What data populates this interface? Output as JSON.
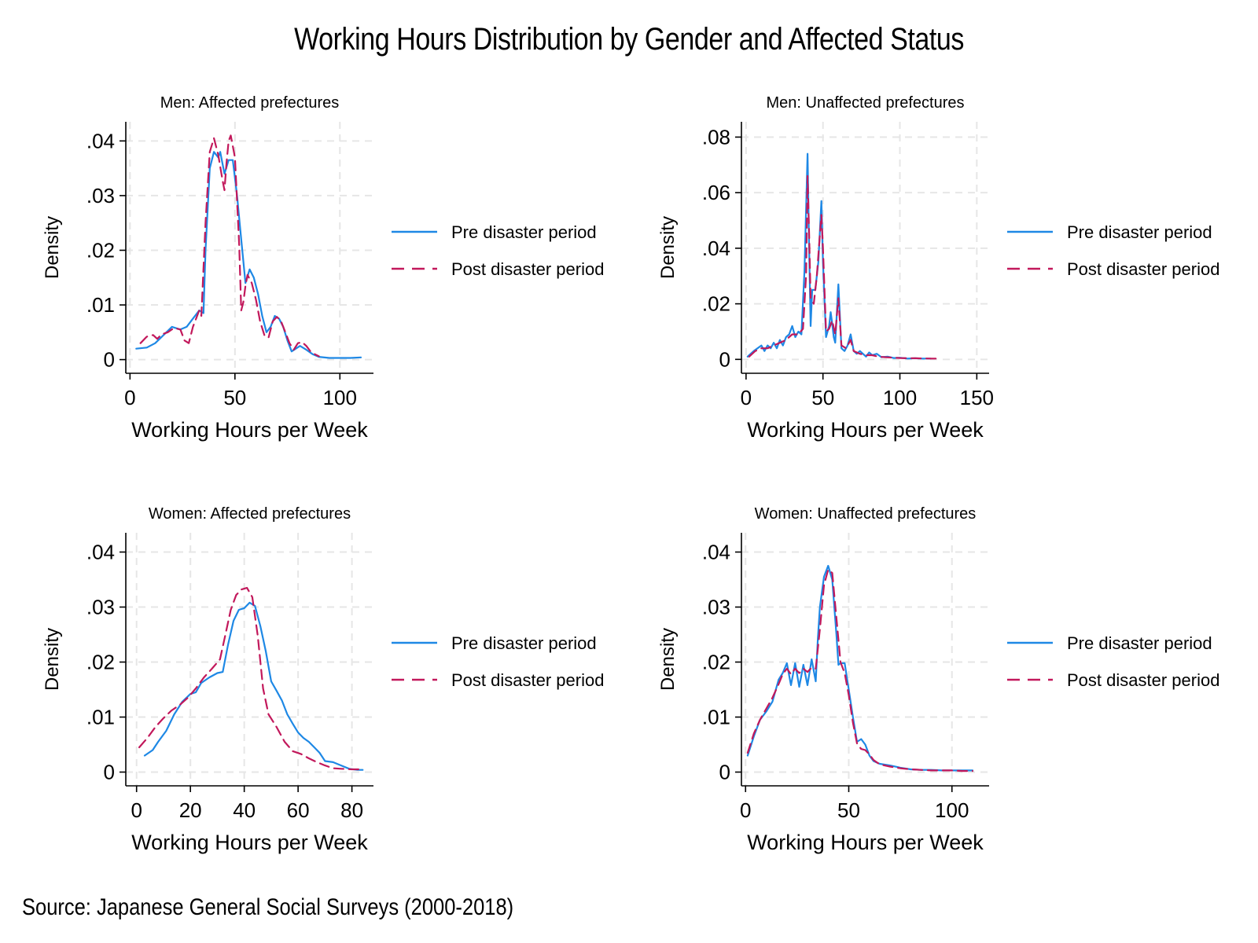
{
  "title": "Working Hours Distribution by Gender and Affected Status",
  "source": "Source: Japanese General Social Surveys (2000-2018)",
  "colors": {
    "pre": "#1e88e5",
    "post": "#c2185b",
    "grid": "#e6e6e6"
  },
  "chart_data": [
    {
      "type": "line",
      "title": "Men: Affected prefectures",
      "xlabel": "Working Hours per Week",
      "ylabel": "Density",
      "xlim": [
        -2,
        116
      ],
      "ylim": [
        -0.0025,
        0.0435
      ],
      "xticks": [
        0,
        50,
        100
      ],
      "xtick_labels": [
        "0",
        "50",
        "100"
      ],
      "yticks": [
        0,
        0.01,
        0.02,
        0.03,
        0.04
      ],
      "ytick_labels": [
        "0",
        ".01",
        ".02",
        ".03",
        ".04"
      ],
      "grid": true,
      "legend": "right",
      "series": [
        {
          "name": "Pre disaster period",
          "style": "solid",
          "x": [
            3,
            8,
            12,
            16,
            20,
            24,
            27,
            30,
            33,
            35,
            36,
            38,
            40,
            42,
            43,
            44,
            45,
            47,
            49,
            51,
            53,
            55,
            57,
            59,
            61,
            63,
            65,
            67,
            69,
            71,
            73,
            75,
            77,
            79,
            81,
            84,
            87,
            90,
            95,
            100,
            105,
            110
          ],
          "y": [
            0.002,
            0.0022,
            0.003,
            0.0045,
            0.006,
            0.0055,
            0.006,
            0.0075,
            0.009,
            0.0085,
            0.02,
            0.035,
            0.038,
            0.037,
            0.038,
            0.036,
            0.034,
            0.0365,
            0.0365,
            0.03,
            0.022,
            0.014,
            0.0165,
            0.015,
            0.012,
            0.008,
            0.005,
            0.006,
            0.008,
            0.0075,
            0.006,
            0.0035,
            0.0015,
            0.002,
            0.0025,
            0.0018,
            0.001,
            0.0005,
            0.0003,
            0.0003,
            0.0003,
            0.0004
          ]
        },
        {
          "name": "Post disaster period",
          "style": "dashed",
          "x": [
            5,
            8,
            11,
            13,
            15,
            18,
            21,
            24,
            26,
            28,
            30,
            33,
            34,
            36,
            38,
            40,
            42,
            44,
            45,
            46,
            47,
            48,
            50,
            52,
            53,
            54,
            55,
            56,
            58,
            60,
            62,
            64,
            66,
            68,
            70,
            72,
            74,
            76,
            78,
            80,
            82,
            84,
            86,
            88,
            90
          ],
          "y": [
            0.003,
            0.0042,
            0.0045,
            0.0038,
            0.0046,
            0.005,
            0.0058,
            0.0055,
            0.0035,
            0.003,
            0.006,
            0.009,
            0.008,
            0.025,
            0.038,
            0.0405,
            0.0375,
            0.033,
            0.031,
            0.036,
            0.04,
            0.041,
            0.037,
            0.021,
            0.009,
            0.0105,
            0.0135,
            0.0155,
            0.014,
            0.011,
            0.007,
            0.0045,
            0.004,
            0.007,
            0.0078,
            0.007,
            0.005,
            0.003,
            0.0018,
            0.003,
            0.0032,
            0.0025,
            0.0015,
            0.001,
            0.0006
          ]
        }
      ]
    },
    {
      "type": "line",
      "title": "Men: Unaffected prefectures",
      "xlabel": "Working Hours per Week",
      "ylabel": "Density",
      "xlim": [
        -3,
        158
      ],
      "ylim": [
        -0.005,
        0.0855
      ],
      "xticks": [
        0,
        50,
        100,
        150
      ],
      "xtick_labels": [
        "0",
        "50",
        "100",
        "150"
      ],
      "yticks": [
        0,
        0.02,
        0.04,
        0.06,
        0.08
      ],
      "ytick_labels": [
        "0",
        ".02",
        ".04",
        ".06",
        ".08"
      ],
      "grid": true,
      "legend": "right",
      "series": [
        {
          "name": "Pre disaster period",
          "style": "solid",
          "x": [
            1,
            5,
            10,
            12,
            14,
            16,
            18,
            20,
            22,
            24,
            26,
            28,
            30,
            32,
            34,
            36,
            38,
            40,
            41,
            42,
            43,
            45,
            47,
            49,
            50,
            52,
            54,
            55,
            56,
            57,
            58,
            60,
            62,
            64,
            66,
            68,
            70,
            72,
            74,
            78,
            80,
            82,
            85,
            88,
            92,
            96,
            100,
            105,
            110,
            115,
            120
          ],
          "y": [
            0.001,
            0.003,
            0.005,
            0.003,
            0.005,
            0.004,
            0.006,
            0.004,
            0.007,
            0.005,
            0.008,
            0.009,
            0.012,
            0.008,
            0.01,
            0.009,
            0.032,
            0.074,
            0.04,
            0.012,
            0.025,
            0.025,
            0.035,
            0.057,
            0.035,
            0.008,
            0.012,
            0.017,
            0.013,
            0.008,
            0.006,
            0.027,
            0.004,
            0.003,
            0.005,
            0.009,
            0.003,
            0.002,
            0.003,
            0.001,
            0.0025,
            0.0015,
            0.002,
            0.0008,
            0.001,
            0.0005,
            0.0006,
            0.0003,
            0.0004,
            0.0003,
            0.0003
          ]
        },
        {
          "name": "Post disaster period",
          "style": "dashed",
          "x": [
            2,
            6,
            10,
            14,
            18,
            22,
            26,
            30,
            34,
            37,
            39,
            40,
            41,
            42,
            44,
            46,
            48,
            49,
            50,
            52,
            54,
            56,
            58,
            60,
            62,
            65,
            68,
            70,
            74,
            78,
            82,
            86,
            90,
            100,
            110,
            120,
            125
          ],
          "y": [
            0.001,
            0.003,
            0.004,
            0.004,
            0.005,
            0.006,
            0.007,
            0.009,
            0.009,
            0.011,
            0.03,
            0.066,
            0.045,
            0.022,
            0.02,
            0.03,
            0.045,
            0.052,
            0.04,
            0.01,
            0.011,
            0.014,
            0.009,
            0.022,
            0.005,
            0.004,
            0.007,
            0.003,
            0.002,
            0.0015,
            0.0015,
            0.001,
            0.0008,
            0.0005,
            0.0004,
            0.0003,
            0.0003
          ]
        }
      ]
    },
    {
      "type": "line",
      "title": "Women: Affected prefectures",
      "xlabel": "Working Hours per Week",
      "ylabel": "Density",
      "xlim": [
        -4,
        88
      ],
      "ylim": [
        -0.0025,
        0.0435
      ],
      "xticks": [
        0,
        20,
        40,
        60,
        80
      ],
      "xtick_labels": [
        "0",
        "20",
        "40",
        "60",
        "80"
      ],
      "yticks": [
        0,
        0.01,
        0.02,
        0.03,
        0.04
      ],
      "ytick_labels": [
        "0",
        ".01",
        ".02",
        ".03",
        ".04"
      ],
      "grid": true,
      "legend": "right",
      "series": [
        {
          "name": "Pre disaster period",
          "style": "solid",
          "x": [
            3,
            6,
            8,
            11,
            14,
            17,
            20,
            22,
            24,
            27,
            30,
            32,
            34,
            36,
            38,
            40,
            42,
            44,
            46,
            48,
            50,
            52,
            54,
            56,
            58,
            60,
            62,
            64,
            66,
            68,
            70,
            73,
            76,
            79,
            82,
            84
          ],
          "y": [
            0.003,
            0.004,
            0.0055,
            0.0075,
            0.0105,
            0.0128,
            0.0142,
            0.0145,
            0.0162,
            0.0172,
            0.018,
            0.0182,
            0.0232,
            0.0275,
            0.0295,
            0.0298,
            0.0308,
            0.0302,
            0.0265,
            0.022,
            0.0165,
            0.0148,
            0.013,
            0.0105,
            0.0088,
            0.0072,
            0.0062,
            0.0055,
            0.0045,
            0.0035,
            0.002,
            0.0018,
            0.0012,
            0.0006,
            0.0004,
            0.0004
          ]
        },
        {
          "name": "Post disaster period",
          "style": "dashed",
          "x": [
            1,
            4,
            7,
            10,
            13,
            16,
            19,
            22,
            25,
            28,
            31,
            33,
            35,
            37,
            39,
            41,
            43,
            45,
            47,
            49,
            52,
            55,
            58,
            61,
            64,
            67,
            70,
            73,
            76,
            80,
            83
          ],
          "y": [
            0.0045,
            0.0062,
            0.0082,
            0.0098,
            0.0112,
            0.0122,
            0.0135,
            0.0152,
            0.0172,
            0.0188,
            0.0205,
            0.025,
            0.0295,
            0.0322,
            0.0332,
            0.0335,
            0.0318,
            0.0248,
            0.0152,
            0.0105,
            0.0082,
            0.0055,
            0.0038,
            0.0033,
            0.0025,
            0.0018,
            0.0012,
            0.0007,
            0.0006,
            0.0005,
            0.0005
          ]
        }
      ]
    },
    {
      "type": "line",
      "title": "Women: Unaffected prefectures",
      "xlabel": "Working Hours per Week",
      "ylabel": "Density",
      "xlim": [
        -2,
        118
      ],
      "ylim": [
        -0.0025,
        0.0435
      ],
      "xticks": [
        0,
        50,
        100
      ],
      "xtick_labels": [
        "0",
        "50",
        "100"
      ],
      "yticks": [
        0,
        0.01,
        0.02,
        0.03,
        0.04
      ],
      "ytick_labels": [
        "0",
        ".01",
        ".02",
        ".03",
        ".04"
      ],
      "grid": true,
      "legend": "right",
      "series": [
        {
          "name": "Pre disaster period",
          "style": "solid",
          "x": [
            1,
            4,
            7,
            10,
            13,
            16,
            18,
            20,
            22,
            24,
            26,
            28,
            30,
            32,
            34,
            35,
            36,
            38,
            40,
            42,
            44,
            45,
            46,
            48,
            50,
            52,
            54,
            56,
            58,
            60,
            62,
            65,
            70,
            75,
            80,
            85,
            90,
            95,
            100,
            105,
            110
          ],
          "y": [
            0.003,
            0.0065,
            0.0095,
            0.011,
            0.0128,
            0.0168,
            0.018,
            0.0198,
            0.0158,
            0.0198,
            0.0155,
            0.0195,
            0.0158,
            0.0205,
            0.0165,
            0.024,
            0.03,
            0.0355,
            0.0375,
            0.035,
            0.025,
            0.0195,
            0.0198,
            0.0198,
            0.015,
            0.01,
            0.0055,
            0.006,
            0.005,
            0.003,
            0.002,
            0.0015,
            0.0012,
            0.0008,
            0.0005,
            0.0004,
            0.0004,
            0.0003,
            0.0003,
            0.0003,
            0.0003
          ]
        },
        {
          "name": "Post disaster period",
          "style": "dashed",
          "x": [
            1,
            4,
            7,
            10,
            13,
            16,
            18,
            20,
            22,
            24,
            26,
            28,
            30,
            32,
            34,
            36,
            38,
            40,
            42,
            44,
            46,
            48,
            50,
            52,
            54,
            56,
            58,
            60,
            62,
            65,
            70,
            75,
            80,
            85,
            90,
            95,
            100,
            105,
            110
          ],
          "y": [
            0.0035,
            0.007,
            0.0095,
            0.0115,
            0.0135,
            0.016,
            0.0178,
            0.0188,
            0.0178,
            0.0188,
            0.018,
            0.0188,
            0.0182,
            0.019,
            0.0188,
            0.026,
            0.034,
            0.0368,
            0.0362,
            0.028,
            0.02,
            0.018,
            0.014,
            0.009,
            0.0052,
            0.0042,
            0.004,
            0.0032,
            0.0022,
            0.0014,
            0.001,
            0.0007,
            0.0005,
            0.0004,
            0.0003,
            0.0003,
            0.0003,
            0.0002,
            0.0002
          ]
        }
      ]
    }
  ]
}
